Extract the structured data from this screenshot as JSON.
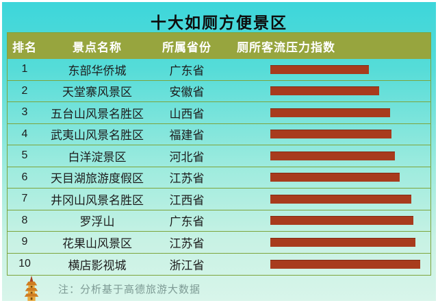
{
  "title": "十大如厕方便景区",
  "table": {
    "headers": [
      "排名",
      "景点名称",
      "所属省份",
      "厕所客流压力指数"
    ],
    "rows": [
      {
        "rank": "1",
        "name": "东部华侨城",
        "province": "广东省",
        "bar_pct": 62.6
      },
      {
        "rank": "2",
        "name": "天堂寨风景区",
        "province": "安徽省",
        "bar_pct": 69.1
      },
      {
        "rank": "3",
        "name": "五台山风景名胜区",
        "province": "山西省",
        "bar_pct": 76.1
      },
      {
        "rank": "4",
        "name": "武夷山风景名胜区",
        "province": "福建省",
        "bar_pct": 77.0
      },
      {
        "rank": "5",
        "name": "白洋淀景区",
        "province": "河北省",
        "bar_pct": 79.1
      },
      {
        "rank": "6",
        "name": "天目湖旅游度假区",
        "province": "江苏省",
        "bar_pct": 82.2
      },
      {
        "rank": "7",
        "name": "井冈山风景名胜区",
        "province": "江西省",
        "bar_pct": 89.6
      },
      {
        "rank": "8",
        "name": "罗浮山",
        "province": "广东省",
        "bar_pct": 90.9
      },
      {
        "rank": "9",
        "name": "花果山风景区",
        "province": "江苏省",
        "bar_pct": 92.2
      },
      {
        "rank": "10",
        "name": "横店影视城",
        "province": "浙江省",
        "bar_pct": 95.2
      }
    ]
  },
  "footer": {
    "note": "注：分析基于高德旅游大数据",
    "icon_name": "pagoda-icon"
  },
  "colors": {
    "background_top": "#3dd6da",
    "background_bottom": "#d8f5ea",
    "header_bg": "#97a53e",
    "bar": "#a83b1d",
    "table_border": "#7da43c",
    "title_text": "#0d0d0d",
    "header_text": "#ffffff",
    "row_text": "#1c1c1c",
    "note_text": "#7d9a94",
    "pagoda_gold": "#e8aa3e",
    "pagoda_roof": "#cf7d22",
    "pagoda_spire": "#a8401e"
  },
  "chart_data": {
    "type": "bar",
    "title": "十大如厕方便景区",
    "categories": [
      "东部华侨城",
      "天堂寨风景区",
      "五台山风景名胜区",
      "武夷山风景名胜区",
      "白洋淀景区",
      "天目湖旅游度假区",
      "井冈山风景名胜区",
      "罗浮山",
      "花果山风景区",
      "横店影视城"
    ],
    "provinces": [
      "广东省",
      "安徽省",
      "山西省",
      "福建省",
      "河北省",
      "江苏省",
      "江西省",
      "广东省",
      "江苏省",
      "浙江省"
    ],
    "series": [
      {
        "name": "厕所客流压力指数（相对条长，最长条=100，图中未标数值）",
        "values": [
          65.8,
          72.6,
          79.9,
          80.8,
          83.1,
          86.3,
          94.1,
          95.4,
          96.8,
          100
        ]
      }
    ],
    "orientation": "horizontal",
    "xlabel": "",
    "ylabel": "",
    "legend": false,
    "grid": false,
    "note": "注：分析基于高德旅游大数据"
  }
}
